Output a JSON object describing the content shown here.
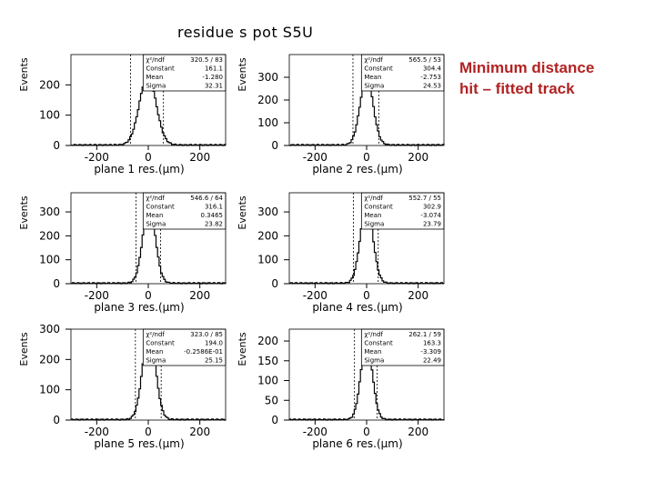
{
  "title": "residue s pot S5U",
  "annotation": [
    "Minimum distance",
    "hit – fitted track"
  ],
  "chart_data": [
    {
      "type": "line",
      "subtitle": "plane 1  res.(μm)",
      "ylabel": "Events",
      "xlim": [
        -300,
        300
      ],
      "ylim": [
        0,
        300
      ],
      "yticks": [
        0,
        100,
        200
      ],
      "xticks": [
        -200,
        0,
        200
      ],
      "stats": {
        "chi2": "320.5   /   83",
        "constant": "161.1",
        "mean": "-1.280",
        "sigma": "32.31"
      },
      "hist": {
        "peak": 230,
        "center": -5,
        "sigma": 32
      }
    },
    {
      "type": "line",
      "subtitle": "plane 2  res.(μm)",
      "ylabel": "Events",
      "xlim": [
        -300,
        300
      ],
      "ylim": [
        0,
        400
      ],
      "yticks": [
        0,
        100,
        200,
        300
      ],
      "xticks": [
        -200,
        0,
        200
      ],
      "stats": {
        "chi2": "565.5   /   53",
        "constant": "304.4",
        "mean": "-2.753",
        "sigma": "24.53"
      },
      "hist": {
        "peak": 300,
        "center": -3,
        "sigma": 25
      }
    },
    {
      "type": "line",
      "subtitle": "plane 3  res.(μm)",
      "ylabel": "Events",
      "xlim": [
        -300,
        300
      ],
      "ylim": [
        0,
        380
      ],
      "yticks": [
        0,
        100,
        200,
        300
      ],
      "xticks": [
        -200,
        0,
        200
      ],
      "stats": {
        "chi2": "546.6   /   64",
        "constant": "316.1",
        "mean": "0.3465",
        "sigma": "23.82"
      },
      "hist": {
        "peak": 330,
        "center": 0,
        "sigma": 24
      }
    },
    {
      "type": "line",
      "subtitle": "plane 4  res.(μm)",
      "ylabel": "Events",
      "xlim": [
        -300,
        300
      ],
      "ylim": [
        0,
        380
      ],
      "yticks": [
        0,
        100,
        200,
        300
      ],
      "xticks": [
        -200,
        0,
        200
      ],
      "stats": {
        "chi2": "552.7   /   55",
        "constant": "302.9",
        "mean": "-3.074",
        "sigma": "23.79"
      },
      "hist": {
        "peak": 330,
        "center": -3,
        "sigma": 24
      }
    },
    {
      "type": "line",
      "subtitle": "plane 5  res.(μm)",
      "ylabel": "Events",
      "xlim": [
        -300,
        300
      ],
      "ylim": [
        0,
        300
      ],
      "yticks": [
        0,
        100,
        200,
        300
      ],
      "xticks": [
        -200,
        0,
        200
      ],
      "stats": {
        "chi2": "323.0   /   85",
        "constant": "194.0",
        "mean": "-0.2586E-01",
        "sigma": "25.15"
      },
      "hist": {
        "peak": 290,
        "center": 0,
        "sigma": 25
      }
    },
    {
      "type": "line",
      "subtitle": "plane 6  res.(μm)",
      "ylabel": "Events",
      "xlim": [
        -300,
        300
      ],
      "ylim": [
        0,
        230
      ],
      "yticks": [
        0,
        50,
        100,
        150,
        200
      ],
      "xticks": [
        -200,
        0,
        200
      ],
      "stats": {
        "chi2": "262.1   /   59",
        "constant": "163.3",
        "mean": "-3.309",
        "sigma": "22.49"
      },
      "hist": {
        "peak": 200,
        "center": -3,
        "sigma": 22
      }
    }
  ],
  "stat_labels": {
    "chi2": "χ²/ndf",
    "constant": "Constant",
    "mean": "Mean",
    "sigma": "Sigma"
  }
}
